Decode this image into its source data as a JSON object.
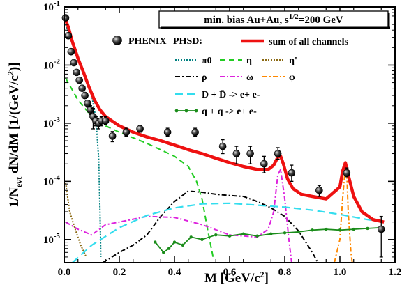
{
  "chart_data": {
    "type": "line",
    "title": "min. bias Au+Au, s^1/2=200 GeV",
    "xlabel": "M  [GeV/c^2]",
    "ylabel": "1/N_evt  dN/dM  [1/(GeV/c^2)]",
    "xlim": [
      0,
      1.2
    ],
    "ylim": [
      4e-06,
      0.1
    ],
    "yscale": "log",
    "x_ticks": [
      "0.0",
      "0.2",
      "0.4",
      "0.6",
      "0.8",
      "1.0",
      "1.2"
    ],
    "y_ticks": [
      "10^-5",
      "10^-4",
      "10^-3",
      "10^-2",
      "10^-1"
    ],
    "legend_header": {
      "data": "PHENIX",
      "model": "PHSD:"
    },
    "series": [
      {
        "name": "sum of all channels",
        "color": "#ee1111",
        "style": "solid-thick",
        "points": [
          [
            0.005,
            0.06
          ],
          [
            0.015,
            0.045
          ],
          [
            0.03,
            0.025
          ],
          [
            0.05,
            0.013
          ],
          [
            0.07,
            0.0075
          ],
          [
            0.09,
            0.0042
          ],
          [
            0.11,
            0.0025
          ],
          [
            0.13,
            0.0017
          ],
          [
            0.15,
            0.0013
          ],
          [
            0.2,
            0.0009
          ],
          [
            0.25,
            0.0007
          ],
          [
            0.3,
            0.00058
          ],
          [
            0.35,
            0.0005
          ],
          [
            0.4,
            0.00042
          ],
          [
            0.45,
            0.00035
          ],
          [
            0.5,
            0.0003
          ],
          [
            0.55,
            0.00025
          ],
          [
            0.6,
            0.00021
          ],
          [
            0.65,
            0.00018
          ],
          [
            0.7,
            0.00016
          ],
          [
            0.74,
            0.00016
          ],
          [
            0.76,
            0.00019
          ],
          [
            0.775,
            0.00026
          ],
          [
            0.785,
            0.00027
          ],
          [
            0.795,
            0.0002
          ],
          [
            0.81,
            0.00011
          ],
          [
            0.83,
            7.5e-05
          ],
          [
            0.86,
            6e-05
          ],
          [
            0.9,
            5.5e-05
          ],
          [
            0.95,
            5e-05
          ],
          [
            1.0,
            8e-05
          ],
          [
            1.01,
            0.00015
          ],
          [
            1.02,
            0.00021
          ],
          [
            1.03,
            0.00013
          ],
          [
            1.05,
            5.5e-05
          ],
          [
            1.08,
            3e-05
          ],
          [
            1.12,
            2.2e-05
          ],
          [
            1.16,
            2e-05
          ]
        ]
      },
      {
        "name": "π0",
        "color": "#008080",
        "style": "dotted",
        "points": [
          [
            0.005,
            0.05
          ],
          [
            0.02,
            0.03
          ],
          [
            0.04,
            0.018
          ],
          [
            0.06,
            0.01
          ],
          [
            0.08,
            0.006
          ],
          [
            0.1,
            0.003
          ],
          [
            0.115,
            0.0012
          ],
          [
            0.125,
            0.00025
          ],
          [
            0.13,
            3e-05
          ],
          [
            0.133,
            5e-06
          ]
        ]
      },
      {
        "name": "η",
        "color": "#22cc22",
        "style": "dashed",
        "points": [
          [
            0.005,
            0.006
          ],
          [
            0.05,
            0.0025
          ],
          [
            0.1,
            0.0013
          ],
          [
            0.15,
            0.0009
          ],
          [
            0.2,
            0.0007
          ],
          [
            0.3,
            0.00045
          ],
          [
            0.4,
            0.00027
          ],
          [
            0.45,
            0.00018
          ],
          [
            0.48,
            0.0001
          ],
          [
            0.5,
            5e-05
          ],
          [
            0.52,
            1.5e-05
          ],
          [
            0.54,
            5e-06
          ]
        ]
      },
      {
        "name": "η'",
        "color": "#8b6914",
        "style": "dotted",
        "points": [
          [
            0.005,
            9.5e-05
          ],
          [
            0.02,
            3e-05
          ],
          [
            0.04,
            1.5e-05
          ],
          [
            0.06,
            8e-06
          ],
          [
            0.08,
            5e-06
          ]
        ]
      },
      {
        "name": "ρ",
        "color": "#000000",
        "style": "dash-dot",
        "points": [
          [
            0.14,
            4e-06
          ],
          [
            0.2,
            6e-06
          ],
          [
            0.25,
            8e-06
          ],
          [
            0.3,
            1.2e-05
          ],
          [
            0.35,
            2.5e-05
          ],
          [
            0.4,
            4.5e-05
          ],
          [
            0.45,
            6.8e-05
          ],
          [
            0.5,
            6.5e-05
          ],
          [
            0.55,
            6e-05
          ],
          [
            0.6,
            5.7e-05
          ],
          [
            0.65,
            5.5e-05
          ],
          [
            0.7,
            4.5e-05
          ],
          [
            0.75,
            3.5e-05
          ],
          [
            0.8,
            2.5e-05
          ],
          [
            0.85,
            1.4e-05
          ],
          [
            0.9,
            6e-06
          ],
          [
            0.92,
            4e-06
          ]
        ]
      },
      {
        "name": "ω",
        "color": "#dd22dd",
        "style": "dash-dot",
        "points": [
          [
            0.005,
            2e-05
          ],
          [
            0.05,
            1.5e-05
          ],
          [
            0.1,
            1.2e-05
          ],
          [
            0.15,
            1.8e-05
          ],
          [
            0.2,
            2e-05
          ],
          [
            0.3,
            2.5e-05
          ],
          [
            0.4,
            2.4e-05
          ],
          [
            0.5,
            1.8e-05
          ],
          [
            0.6,
            1.2e-05
          ],
          [
            0.7,
            1.1e-05
          ],
          [
            0.74,
            1.5e-05
          ],
          [
            0.76,
            3e-05
          ],
          [
            0.775,
            0.00013
          ],
          [
            0.785,
            0.00016
          ],
          [
            0.8,
            5e-05
          ],
          [
            0.815,
            1e-05
          ],
          [
            0.825,
            4e-06
          ]
        ]
      },
      {
        "name": "φ",
        "color": "#ff8800",
        "style": "dash-dot",
        "points": [
          [
            0.98,
            4e-06
          ],
          [
            1.0,
            1e-05
          ],
          [
            1.01,
            5e-05
          ],
          [
            1.02,
            0.00018
          ],
          [
            1.025,
            0.00014
          ],
          [
            1.03,
            3e-05
          ],
          [
            1.04,
            6e-06
          ],
          [
            1.045,
            4e-06
          ]
        ]
      },
      {
        "name": "D + D̄ -> e+ e-",
        "color": "#33ddee",
        "style": "dashed-long",
        "points": [
          [
            0.03,
            4e-06
          ],
          [
            0.1,
            8e-06
          ],
          [
            0.2,
            1.6e-05
          ],
          [
            0.3,
            2.6e-05
          ],
          [
            0.4,
            3.5e-05
          ],
          [
            0.5,
            4.1e-05
          ],
          [
            0.6,
            4.2e-05
          ],
          [
            0.7,
            3.9e-05
          ],
          [
            0.8,
            3.6e-05
          ],
          [
            0.9,
            3.2e-05
          ],
          [
            1.0,
            2.7e-05
          ],
          [
            1.1,
            2.2e-05
          ],
          [
            1.16,
            2e-05
          ]
        ]
      },
      {
        "name": "q + q̄ -> e+ e-",
        "color": "#1a8c1a",
        "style": "solid-markers",
        "points": [
          [
            0.33,
            9e-06
          ],
          [
            0.36,
            6e-06
          ],
          [
            0.38,
            7e-06
          ],
          [
            0.4,
            9e-06
          ],
          [
            0.43,
            8e-06
          ],
          [
            0.46,
            1.1e-05
          ],
          [
            0.5,
            1e-05
          ],
          [
            0.55,
            1.2e-05
          ],
          [
            0.6,
            1.15e-05
          ],
          [
            0.65,
            1.25e-05
          ],
          [
            0.7,
            1.15e-05
          ],
          [
            0.75,
            1.25e-05
          ],
          [
            0.8,
            1.3e-05
          ],
          [
            0.85,
            1.35e-05
          ],
          [
            0.9,
            1.45e-05
          ],
          [
            0.95,
            1.5e-05
          ],
          [
            1.0,
            1.45e-05
          ],
          [
            1.05,
            1.5e-05
          ],
          [
            1.1,
            1.55e-05
          ],
          [
            1.15,
            1.6e-05
          ]
        ]
      }
    ],
    "data_points": {
      "name": "PHENIX",
      "x": [
        0.005,
        0.015,
        0.025,
        0.035,
        0.045,
        0.055,
        0.065,
        0.075,
        0.085,
        0.095,
        0.105,
        0.115,
        0.125,
        0.135,
        0.15,
        0.175,
        0.225,
        0.275,
        0.375,
        0.475,
        0.575,
        0.625,
        0.675,
        0.725,
        0.775,
        0.825,
        0.925,
        1.025,
        1.15
      ],
      "y": [
        0.065,
        0.032,
        0.017,
        0.011,
        0.0075,
        0.0055,
        0.004,
        0.003,
        0.0022,
        0.0017,
        0.0013,
        0.0011,
        0.001,
        0.0011,
        0.0011,
        0.0006,
        0.0007,
        0.0008,
        0.0007,
        0.0007,
        0.0004,
        0.0003,
        0.0003,
        0.0002,
        0.0003,
        0.00014,
        7e-05,
        0.00014,
        1.5e-05
      ],
      "err_lo": [
        0.06,
        0.03,
        0.016,
        0.0105,
        0.0072,
        0.0052,
        0.0038,
        0.0028,
        0.0019,
        0.0014,
        0.0008,
        0.0009,
        0.0008,
        0.0009,
        0.00095,
        0.00048,
        0.0006,
        0.0007,
        0.0006,
        0.0006,
        0.0003,
        0.0002,
        0.0002,
        0.00014,
        0.00024,
        0.0001,
        5.5e-05,
        0.00012,
        5e-06
      ],
      "err_hi": [
        0.07,
        0.034,
        0.018,
        0.0115,
        0.0078,
        0.0058,
        0.0042,
        0.0032,
        0.0025,
        0.002,
        0.0018,
        0.0013,
        0.0012,
        0.0013,
        0.0013,
        0.00072,
        0.00082,
        0.00092,
        0.00082,
        0.00082,
        0.00052,
        0.0004,
        0.0004,
        0.00027,
        0.00038,
        0.00019,
        8.5e-05,
        0.00017,
        2.5e-05
      ]
    }
  }
}
